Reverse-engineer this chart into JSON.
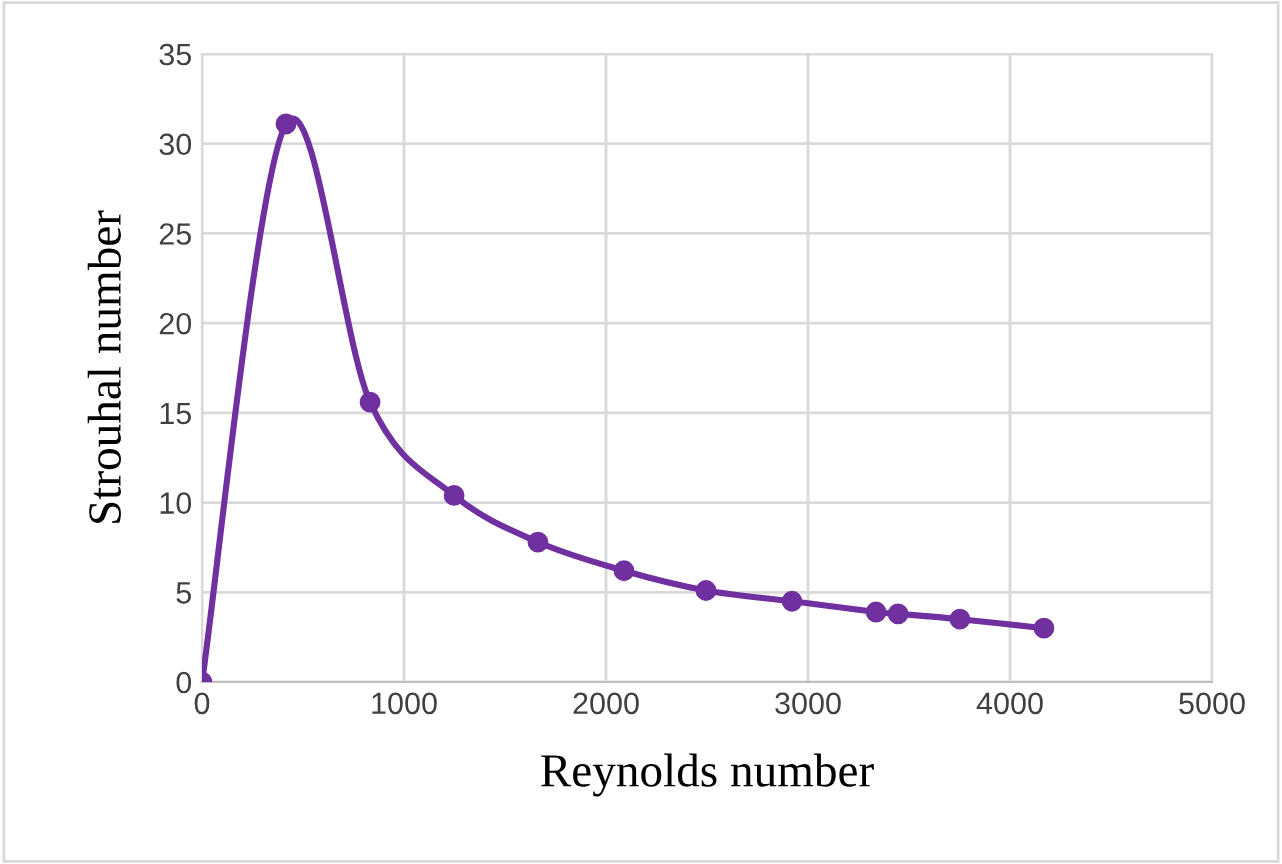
{
  "chart_data": {
    "type": "line",
    "xlabel": "Reynolds number",
    "ylabel": "Strouhal number",
    "x": [
      0,
      416,
      832,
      1248,
      1663,
      2089,
      2495,
      2921,
      3337,
      3446,
      3752,
      4168
    ],
    "series": [
      {
        "color": "#7030a0",
        "values": [
          0,
          31.1,
          15.6,
          10.4,
          7.8,
          6.2,
          5.1,
          4.5,
          3.9,
          3.8,
          3.5,
          3.0
        ]
      }
    ],
    "xlim": [
      0,
      5000
    ],
    "xticks": [
      0,
      1000,
      2000,
      3000,
      4000,
      5000
    ],
    "ylim": [
      0,
      35
    ],
    "yticks": [
      0,
      5,
      10,
      15,
      20,
      25,
      30,
      35
    ],
    "grid": true,
    "marker": "circle",
    "line_style": "solid",
    "legend": false
  }
}
